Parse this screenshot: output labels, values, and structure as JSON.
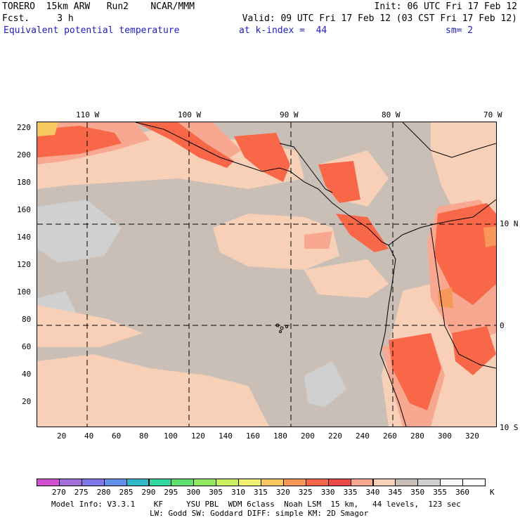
{
  "header": {
    "model": "TORERO  15km ARW   Run2    NCAR/MMM",
    "init": "Init: 06 UTC Fri 17 Feb 12",
    "fcst": "Fcst.     3 h",
    "valid": "Valid: 09 UTC Fri 17 Feb 12 (03 CST Fri 17 Feb 12)",
    "field": "Equivalent potential temperature",
    "level": "at k-index =  44",
    "smooth": "sm= 2"
  },
  "map": {
    "top_lon_labels": [
      "110 W",
      "100 W",
      "90 W",
      "80 W",
      "70 W"
    ],
    "right_lat_labels": [
      "10 N",
      "0",
      "10 S"
    ],
    "y_ticks": [
      "220",
      "200",
      "180",
      "160",
      "140",
      "120",
      "100",
      "80",
      "60",
      "40",
      "20"
    ],
    "x_ticks": [
      "20",
      "40",
      "60",
      "80",
      "100",
      "120",
      "140",
      "160",
      "180",
      "200",
      "220",
      "240",
      "260",
      "280",
      "300",
      "320"
    ]
  },
  "colorbar": {
    "levels": [
      "270",
      "275",
      "280",
      "285",
      "290",
      "295",
      "300",
      "305",
      "310",
      "315",
      "320",
      "325",
      "330",
      "335",
      "340",
      "345",
      "350",
      "355",
      "360"
    ],
    "unit": "K",
    "colors": [
      "#d050d0",
      "#a070d8",
      "#8078e8",
      "#6090e8",
      "#30b8c8",
      "#30d8a0",
      "#60e070",
      "#90e860",
      "#c8f060",
      "#f0f070",
      "#f8c860",
      "#f89858",
      "#f86848",
      "#e84848",
      "#f8a890",
      "#f8d0b8",
      "#c8c0b8",
      "#d0d0d0",
      "#f8f8f8",
      "#ffffff"
    ]
  },
  "footer": {
    "line1": "Model Info: V3.3.1    KF     YSU PBL  WDM 6class  Noah LSM  15 km,   44 levels,  123 sec",
    "line2": "LW: Godd SW: Goddard DIFF: simple KM: 2D Smagor"
  }
}
